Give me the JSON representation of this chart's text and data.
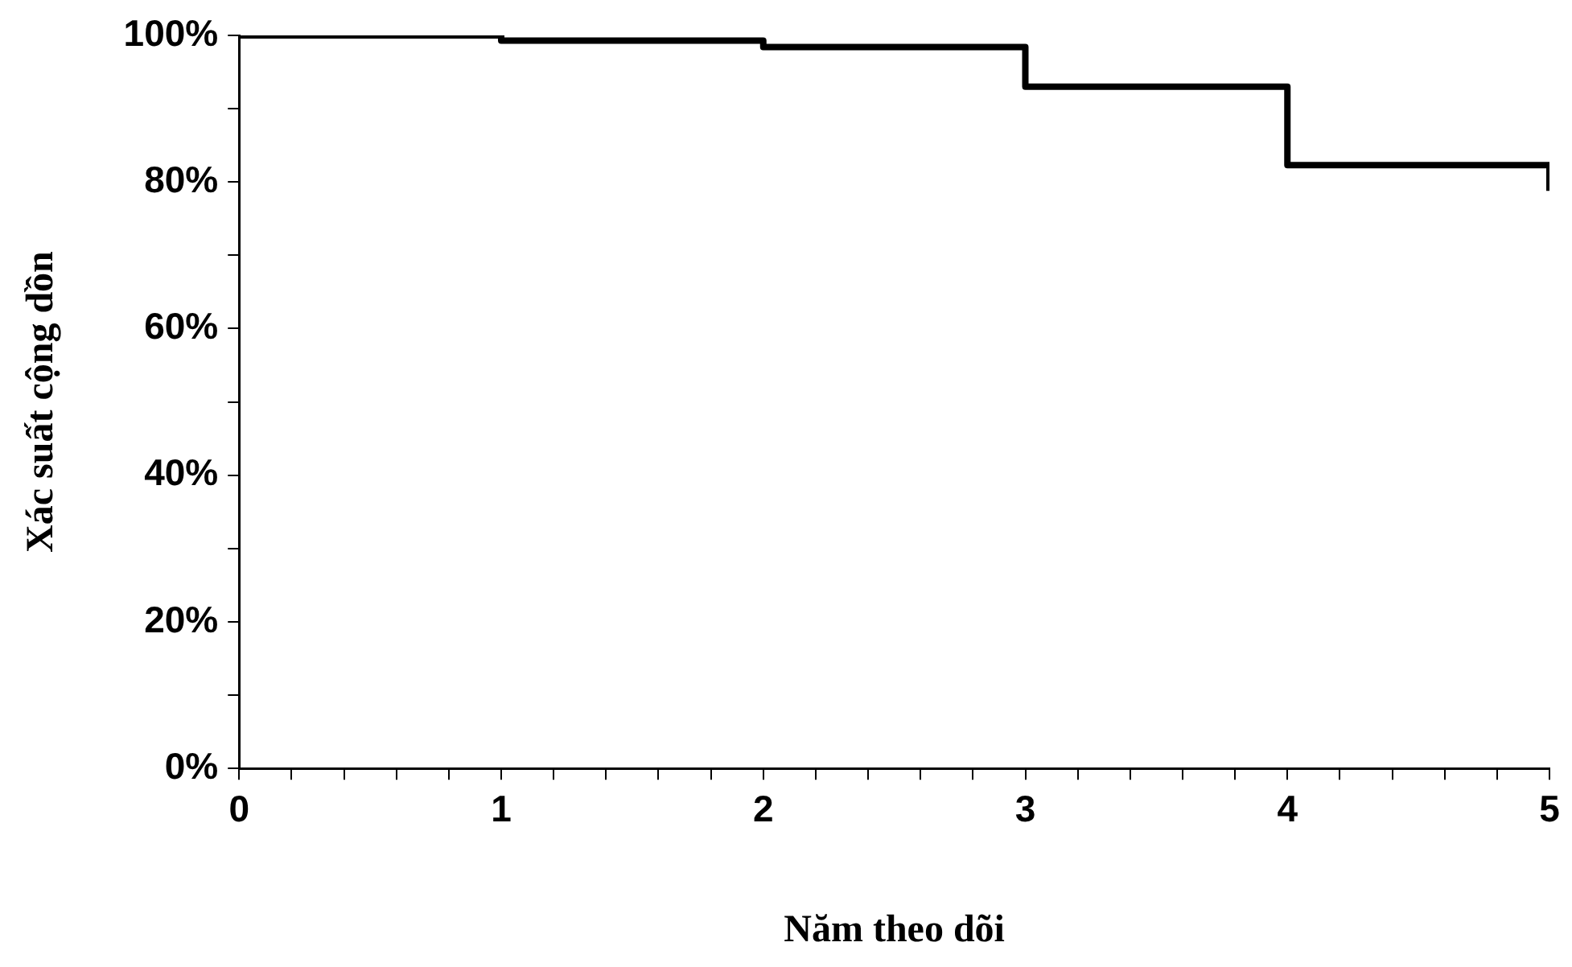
{
  "chart_data": {
    "type": "step",
    "xlabel": "Năm theo dõi",
    "ylabel": "Xác suất cộng dồn",
    "x": [
      0,
      1,
      2,
      3,
      4,
      5
    ],
    "series": [
      {
        "color": "#000000",
        "values": [
          100,
          99.3,
          98.4,
          93,
          82.3,
          78.8
        ]
      }
    ],
    "xlim": [
      0,
      5
    ],
    "xticks": [
      0,
      {
        "value": 0.2,
        "label": null
      },
      {
        "value": 0.4,
        "label": null
      },
      {
        "value": 0.6,
        "label": null
      },
      {
        "value": 0.8,
        "label": null
      },
      1,
      {
        "value": 1.2,
        "label": null
      },
      {
        "value": 1.4,
        "label": null
      },
      {
        "value": 1.6,
        "label": null
      },
      {
        "value": 1.8,
        "label": null
      },
      2,
      {
        "value": 2.2,
        "label": null
      },
      {
        "value": 2.4,
        "label": null
      },
      {
        "value": 2.6,
        "label": null
      },
      {
        "value": 2.8,
        "label": null
      },
      3,
      {
        "value": 3.2,
        "label": null
      },
      {
        "value": 3.4,
        "label": null
      },
      {
        "value": 3.6,
        "label": null
      },
      {
        "value": 3.8,
        "label": null
      },
      4,
      {
        "value": 4.2,
        "label": null
      },
      {
        "value": 4.4,
        "label": null
      },
      {
        "value": 4.6,
        "label": null
      },
      {
        "value": 4.8,
        "label": null
      },
      5
    ],
    "ylim": [
      0,
      100
    ],
    "yticks": [
      {
        "value": 0,
        "label": "0%"
      },
      {
        "value": 10,
        "label": null
      },
      {
        "value": 20,
        "label": "20%"
      },
      {
        "value": 30,
        "label": null
      },
      {
        "value": 40,
        "label": "40%"
      },
      {
        "value": 50,
        "label": null
      },
      {
        "value": 60,
        "label": "60%"
      },
      {
        "value": 70,
        "label": null
      },
      {
        "value": 80,
        "label": "80%"
      },
      {
        "value": 90,
        "label": null
      },
      {
        "value": 100,
        "label": "100%"
      }
    ],
    "grid": false,
    "legend": false,
    "marker": "none",
    "line_style": "solid"
  }
}
